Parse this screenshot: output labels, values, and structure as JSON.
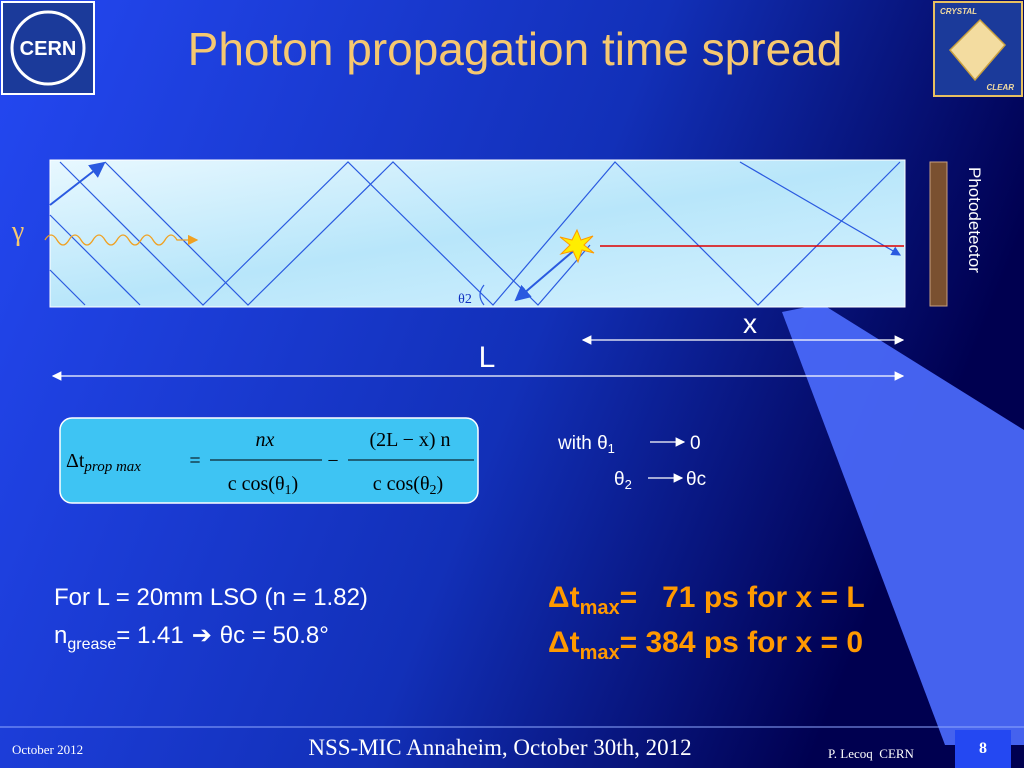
{
  "logos": {
    "left": "CERN",
    "right_top": "CRYSTAL",
    "right_bottom": "CLEAR"
  },
  "title": "Photon propagation time spread",
  "diagram": {
    "gamma": "γ",
    "theta2": "θ2",
    "x": "x",
    "L": "L",
    "detector": "Photodetector"
  },
  "formula": {
    "lhs": "Δt",
    "lhs_sub": "prop max",
    "eq": "=",
    "num1": "nx",
    "den1": "c cos(θ",
    "den1_sub": "1",
    "den1_end": ")",
    "minus": "−",
    "num2": "(2L − x) n",
    "den2": "c cos(θ",
    "den2_sub": "2",
    "den2_end": ")"
  },
  "limits": {
    "with": "with θ",
    "sub1": "1",
    "to1": "0",
    "theta2": "θ",
    "sub2": "2",
    "to2": "θc"
  },
  "conditions": {
    "line1": "For L = 20mm LSO (n = 1.82)",
    "line2_n": "n",
    "line2_sub": "grease",
    "line2_rest": "= 1.41",
    "arrow": "➔",
    "line2_end": "θc = 50.8°"
  },
  "results": [
    {
      "delta": "Δt",
      "sub": "max",
      "value": "=   71 ps for x = L"
    },
    {
      "delta": "Δt",
      "sub": "max",
      "value": "= 384 ps for x = 0"
    }
  ],
  "footer": {
    "date": "October 2012",
    "event": "NSS-MIC Annaheim, October 30th, 2012",
    "author": "P. Lecoq  CERN",
    "page": "8"
  }
}
